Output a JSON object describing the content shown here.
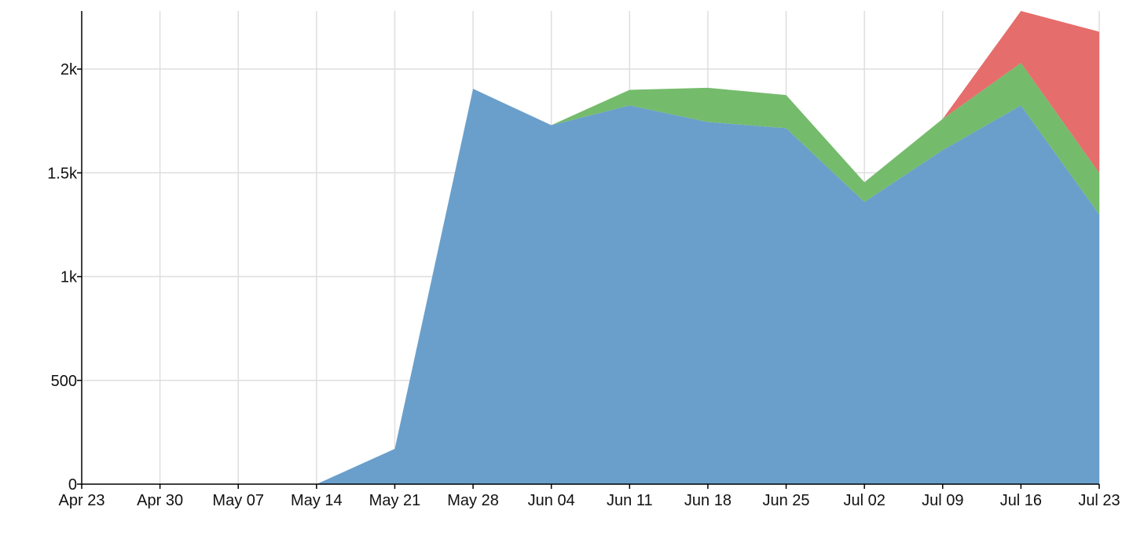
{
  "chart_data": {
    "type": "area",
    "stacked": true,
    "x_type": "date",
    "x_tick_labels": [
      "Apr 23",
      "Apr 30",
      "May 07",
      "May 14",
      "May 21",
      "May 28",
      "Jun 04",
      "Jun 11",
      "Jun 18",
      "Jun 25",
      "Jul 02",
      "Jul 09",
      "Jul 16",
      "Jul 23"
    ],
    "x": [
      "2018-04-23",
      "2018-04-30",
      "2018-05-07",
      "2018-05-14",
      "2018-05-21",
      "2018-05-28",
      "2018-06-04",
      "2018-06-11",
      "2018-06-18",
      "2018-06-25",
      "2018-07-02",
      "2018-07-09",
      "2018-07-16",
      "2018-07-23"
    ],
    "y_ticks": [
      0,
      500,
      1000,
      1500,
      2000
    ],
    "y_tick_labels": [
      "0",
      "500",
      "1k",
      "1.5k",
      "2k"
    ],
    "ylim": [
      0,
      2280
    ],
    "grid": true,
    "legend": "none",
    "series": [
      {
        "color": "#6a9fcb",
        "values": [
          0,
          0,
          0,
          0,
          170,
          1905,
          1730,
          1825,
          1745,
          1715,
          1360,
          1610,
          1825,
          1300
        ]
      },
      {
        "color": "#75bb6c",
        "values": [
          0,
          0,
          0,
          0,
          0,
          0,
          0,
          75,
          165,
          160,
          95,
          150,
          205,
          200
        ]
      },
      {
        "color": "#e56d6c",
        "values": [
          0,
          0,
          0,
          0,
          0,
          0,
          0,
          0,
          0,
          0,
          0,
          0,
          250,
          680
        ]
      }
    ]
  }
}
